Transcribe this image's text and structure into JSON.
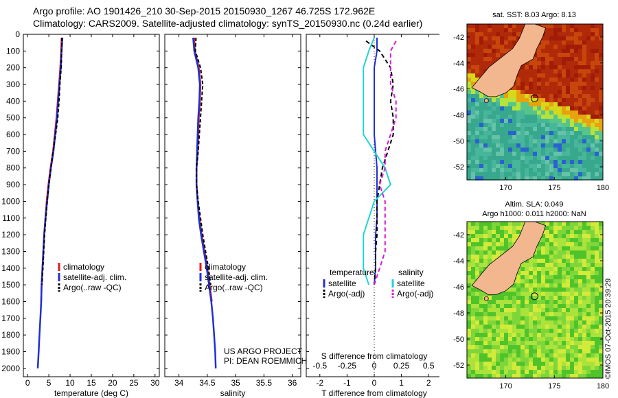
{
  "header": {
    "line1": "Argo profile: AO 1901426_210 30-Sep-2015 20150930_1267 46.725S 172.962E",
    "line2": "Climatology: CARS2009. Satellite-adjusted climatology: synTS_20150930.nc (0.24d earlier)"
  },
  "project_note": {
    "line1": "US ARGO PROJECT",
    "line2": "PI: DEAN ROEMMICH"
  },
  "credit": "©IMOS 07-Oct-2015 20:39:29",
  "colors": {
    "climatology": "#e31a1c",
    "satellite": "#1f2fd6",
    "argo": "#000000",
    "satellite_s": "#22d3d3",
    "argo_s": "#d41ad4",
    "land": "#f3b78f"
  },
  "map_top": {
    "title": "sat. SST: 8.03 Argo: 8.13",
    "xticks": [
      "170",
      "175",
      "180"
    ],
    "yticks": [
      "-42",
      "-44",
      "-46",
      "-48",
      "-50",
      "-52"
    ],
    "xlim": [
      166,
      180
    ],
    "ylim": [
      -53,
      -41
    ],
    "float_lon": 172.962,
    "float_lat": -46.725
  },
  "map_bottom": {
    "title1": "Altim. SLA: 0.049",
    "title2": "Argo h1000: 0.011 h2000: NaN",
    "xticks": [
      "170",
      "175",
      "180"
    ],
    "yticks": [
      "-42",
      "-44",
      "-46",
      "-48",
      "-50",
      "-52"
    ],
    "xlim": [
      166,
      180
    ],
    "ylim": [
      -53,
      -41
    ],
    "float_lon": 172.962,
    "float_lat": -46.725
  },
  "chart_data": [
    {
      "type": "line",
      "xlabel": "temperature (deg C)",
      "ylabel": "",
      "xlim": [
        -1,
        31
      ],
      "ylim": [
        2050,
        0
      ],
      "xticks": [
        0,
        5,
        10,
        15,
        20,
        25,
        30
      ],
      "yticks": [
        0,
        100,
        200,
        300,
        400,
        500,
        600,
        700,
        800,
        900,
        1000,
        1100,
        1200,
        1300,
        1400,
        1500,
        1600,
        1700,
        1800,
        1900,
        2000
      ],
      "legend": [
        "climatology",
        "satellite-adj. clim.",
        "Argo(..raw -QC)"
      ],
      "legend_position": "bottom-center",
      "series": [
        {
          "name": "climatology",
          "x": [
            8.0,
            7.9,
            7.7,
            7.4,
            7.1,
            6.8,
            6.4,
            6.0,
            5.4,
            4.9,
            4.5,
            4.2,
            3.9,
            3.7,
            3.5,
            3.3,
            3.2
          ],
          "y": [
            20,
            100,
            200,
            300,
            400,
            500,
            600,
            700,
            800,
            900,
            1000,
            1100,
            1200,
            1300,
            1400,
            1500,
            1600
          ]
        },
        {
          "name": "satellite-adj. clim.",
          "x": [
            8.2,
            8.0,
            7.8,
            7.5,
            7.2,
            6.9,
            6.5,
            6.1,
            5.5,
            5.0,
            4.6,
            4.2,
            3.9,
            3.7,
            3.5,
            3.3,
            3.2,
            3.0,
            2.8,
            2.6,
            2.4
          ],
          "y": [
            20,
            100,
            200,
            300,
            400,
            500,
            600,
            700,
            800,
            900,
            1000,
            1100,
            1200,
            1300,
            1400,
            1500,
            1600,
            1700,
            1800,
            1900,
            2000
          ]
        },
        {
          "name": "Argo(..raw -QC)",
          "x": [
            8.1,
            8.0,
            7.9,
            7.6,
            7.4,
            7.1,
            6.6,
            6.0,
            5.5,
            5.0,
            4.6,
            4.3,
            4.0,
            3.8,
            3.6,
            3.4
          ],
          "y": [
            20,
            100,
            200,
            300,
            400,
            500,
            600,
            700,
            800,
            900,
            1000,
            1100,
            1200,
            1300,
            1400,
            1500
          ]
        }
      ]
    },
    {
      "type": "line",
      "xlabel": "salinity",
      "ylabel": "",
      "xlim": [
        33.75,
        36.15
      ],
      "ylim": [
        2050,
        0
      ],
      "xticks": [
        34,
        34.5,
        35,
        35.5,
        36
      ],
      "yticks": [
        0,
        100,
        200,
        300,
        400,
        500,
        600,
        700,
        800,
        900,
        1000,
        1100,
        1200,
        1300,
        1400,
        1500,
        1600,
        1700,
        1800,
        1900,
        2000
      ],
      "legend": [
        "climatology",
        "satellite-adj. clim.",
        "Argo(..raw -QC)"
      ],
      "legend_position": "bottom-center",
      "series": [
        {
          "name": "climatology",
          "x": [
            34.27,
            34.28,
            34.35,
            34.38,
            34.37,
            34.35,
            34.34,
            34.33,
            34.31,
            34.31,
            34.33,
            34.36,
            34.4,
            34.45,
            34.5,
            34.54,
            34.58
          ],
          "y": [
            20,
            100,
            200,
            300,
            400,
            500,
            600,
            700,
            800,
            900,
            1000,
            1100,
            1200,
            1300,
            1400,
            1500,
            1600
          ]
        },
        {
          "name": "satellite-adj. clim.",
          "x": [
            34.25,
            34.27,
            34.34,
            34.37,
            34.36,
            34.34,
            34.33,
            34.32,
            34.31,
            34.31,
            34.33,
            34.35,
            34.39,
            34.44,
            34.49,
            34.53,
            34.57,
            34.6,
            34.62,
            34.64,
            34.65
          ],
          "y": [
            20,
            100,
            200,
            300,
            400,
            500,
            600,
            700,
            800,
            900,
            1000,
            1100,
            1200,
            1300,
            1400,
            1500,
            1600,
            1700,
            1800,
            1900,
            2000
          ]
        },
        {
          "name": "Argo(..raw -QC)",
          "x": [
            34.3,
            34.29,
            34.38,
            34.42,
            34.4,
            34.38,
            34.36,
            34.34,
            34.31,
            34.31,
            34.34,
            34.38,
            34.42,
            34.47,
            34.52,
            34.56
          ],
          "y": [
            20,
            100,
            200,
            300,
            400,
            500,
            600,
            700,
            800,
            900,
            1000,
            1100,
            1200,
            1300,
            1400,
            1500
          ]
        }
      ]
    },
    {
      "type": "line",
      "xlabel": "T difference from climatology",
      "xlabel2": "S difference from climatology",
      "ylabel": "",
      "xlim": [
        -2.5,
        2.5
      ],
      "ylim": [
        2050,
        0
      ],
      "xticks": [
        -2,
        -1,
        0,
        1,
        2
      ],
      "xticks2": [
        -0.5,
        -0.25,
        0,
        0.25,
        0.5
      ],
      "yticks": [
        0,
        100,
        200,
        300,
        400,
        500,
        600,
        700,
        800,
        900,
        1000,
        1100,
        1200,
        1300,
        1400,
        1500,
        1600,
        1700,
        1800,
        1900,
        2000
      ],
      "legend_headers": [
        "temperature",
        "salinity"
      ],
      "legend": [
        "satellite",
        "Argo(-adj)",
        "satellite",
        "Argo(-adj)"
      ],
      "legend_position": "bottom-center",
      "series": [
        {
          "name": "satellite",
          "quantity": "temperature",
          "x": [
            0.1,
            0.1,
            0.0,
            0.0,
            0.0,
            0.0,
            0.0,
            0.05,
            0.1,
            0.1,
            0.1,
            0.1,
            0.05,
            0.05,
            0.05,
            0.0
          ],
          "y": [
            20,
            100,
            200,
            300,
            400,
            500,
            600,
            700,
            800,
            900,
            1000,
            1100,
            1200,
            1300,
            1400,
            1500
          ]
        },
        {
          "name": "Argo(-adj)",
          "quantity": "temperature",
          "x": [
            -0.3,
            0.2,
            0.6,
            0.7,
            0.6,
            0.7,
            0.7,
            0.5,
            0.3,
            0.2,
            0.1,
            0.1,
            0.1,
            0.05,
            0.05,
            0.0
          ],
          "y": [
            40,
            100,
            200,
            300,
            400,
            500,
            600,
            700,
            800,
            900,
            1000,
            1100,
            1200,
            1300,
            1400,
            1500
          ]
        },
        {
          "name": "satellite",
          "quantity": "salinity",
          "x": [
            0.0,
            -0.05,
            -0.1,
            -0.1,
            -0.1,
            -0.1,
            -0.1,
            0.0,
            0.1,
            0.15,
            0.0,
            -0.05,
            -0.1,
            -0.1,
            -0.1,
            -0.05
          ],
          "y": [
            20,
            100,
            200,
            300,
            400,
            500,
            600,
            700,
            800,
            900,
            1000,
            1100,
            1200,
            1300,
            1400,
            1500
          ]
        },
        {
          "name": "Argo(-adj)",
          "quantity": "salinity",
          "x": [
            0.2,
            0.15,
            0.15,
            0.15,
            0.2,
            0.2,
            0.15,
            0.1,
            0.1,
            0.05,
            0.1,
            0.1,
            0.1,
            0.1,
            0.05,
            0.0
          ],
          "y": [
            40,
            100,
            200,
            300,
            400,
            500,
            600,
            700,
            800,
            900,
            1000,
            1100,
            1200,
            1300,
            1400,
            1500
          ]
        }
      ]
    }
  ]
}
